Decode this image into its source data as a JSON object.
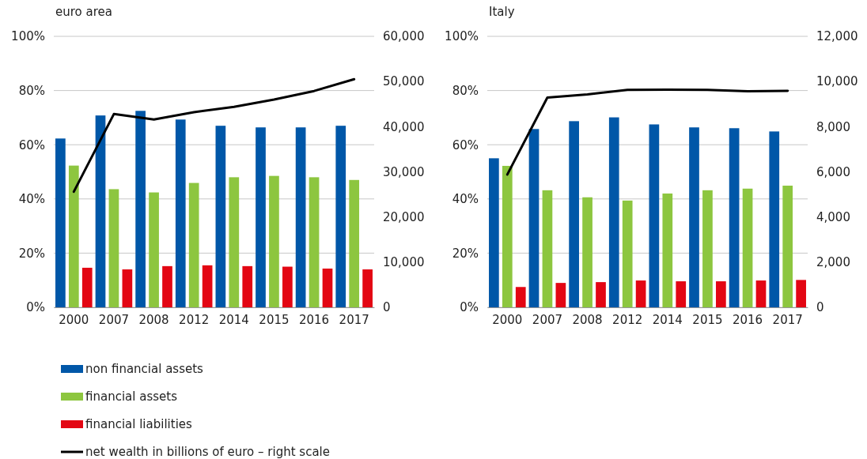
{
  "chart_data": [
    {
      "type": "bar",
      "title": "euro area",
      "categories": [
        "2000",
        "2007",
        "2008",
        "2012",
        "2014",
        "2015",
        "2016",
        "2017"
      ],
      "series": [
        {
          "name": "non financial assets",
          "color": "#0057a8",
          "values": [
            62.3,
            70.8,
            72.5,
            69.3,
            67,
            66.4,
            66.4,
            67
          ]
        },
        {
          "name": "financial assets",
          "color": "#8dc63f",
          "values": [
            52.3,
            43.6,
            42.4,
            45.9,
            48,
            48.5,
            48,
            47
          ]
        },
        {
          "name": "financial liabilities",
          "color": "#e30613",
          "values": [
            14.6,
            14,
            15.2,
            15.5,
            15.2,
            15,
            14.3,
            14
          ]
        },
        {
          "name": "net wealth in billions of euro – right scale",
          "type": "line",
          "axis": "y2",
          "color": "#000000",
          "values": [
            25600,
            42800,
            41600,
            43200,
            44400,
            46000,
            47900,
            50500
          ]
        }
      ],
      "ylim": [
        0,
        100
      ],
      "yticks": [
        {
          "value": 0,
          "label": "0%"
        },
        {
          "value": 20,
          "label": "20%"
        },
        {
          "value": 40,
          "label": "40%"
        },
        {
          "value": 60,
          "label": "60%"
        },
        {
          "value": 80,
          "label": "80%"
        },
        {
          "value": 100,
          "label": "100%"
        }
      ],
      "y2lim": [
        0,
        60000
      ],
      "y2ticks": [
        {
          "value": 0,
          "label": "0"
        },
        {
          "value": 10000,
          "label": "10,000"
        },
        {
          "value": 20000,
          "label": "20,000"
        },
        {
          "value": 30000,
          "label": "30,000"
        },
        {
          "value": 40000,
          "label": "40,000"
        },
        {
          "value": 50000,
          "label": "50,000"
        },
        {
          "value": 60000,
          "label": "60,000"
        }
      ],
      "grid": "y",
      "legend": "bottom"
    },
    {
      "type": "bar",
      "title": "Italy",
      "categories": [
        "2000",
        "2007",
        "2008",
        "2012",
        "2014",
        "2015",
        "2016",
        "2017"
      ],
      "series": [
        {
          "color": "#0057a8",
          "values": [
            55,
            65.8,
            68.7,
            70.1,
            67.5,
            66.4,
            66.1,
            64.9
          ]
        },
        {
          "color": "#8dc63f",
          "values": [
            52.2,
            43.2,
            40.6,
            39.4,
            42,
            43.2,
            43.8,
            44.9
          ]
        },
        {
          "color": "#e30613",
          "values": [
            7.5,
            9,
            9.3,
            9.9,
            9.6,
            9.6,
            9.9,
            10.1
          ]
        },
        {
          "type": "line",
          "axis": "y2",
          "color": "#000000",
          "values": [
            5880,
            9290,
            9430,
            9630,
            9640,
            9630,
            9570,
            9590
          ]
        }
      ],
      "ylim": [
        0,
        100
      ],
      "yticks": [
        {
          "value": 0,
          "label": "0%"
        },
        {
          "value": 20,
          "label": "20%"
        },
        {
          "value": 40,
          "label": "40%"
        },
        {
          "value": 60,
          "label": "60%"
        },
        {
          "value": 80,
          "label": "80%"
        },
        {
          "value": 100,
          "label": "100%"
        }
      ],
      "y2lim": [
        0,
        12000
      ],
      "y2ticks": [
        {
          "value": 0,
          "label": "0"
        },
        {
          "value": 2000,
          "label": "2,000"
        },
        {
          "value": 4000,
          "label": "4,000"
        },
        {
          "value": 6000,
          "label": "6,000"
        },
        {
          "value": 8000,
          "label": "8,000"
        },
        {
          "value": 10000,
          "label": "10,000"
        },
        {
          "value": 12000,
          "label": "12,000"
        }
      ],
      "grid": "y",
      "legend": false
    }
  ]
}
